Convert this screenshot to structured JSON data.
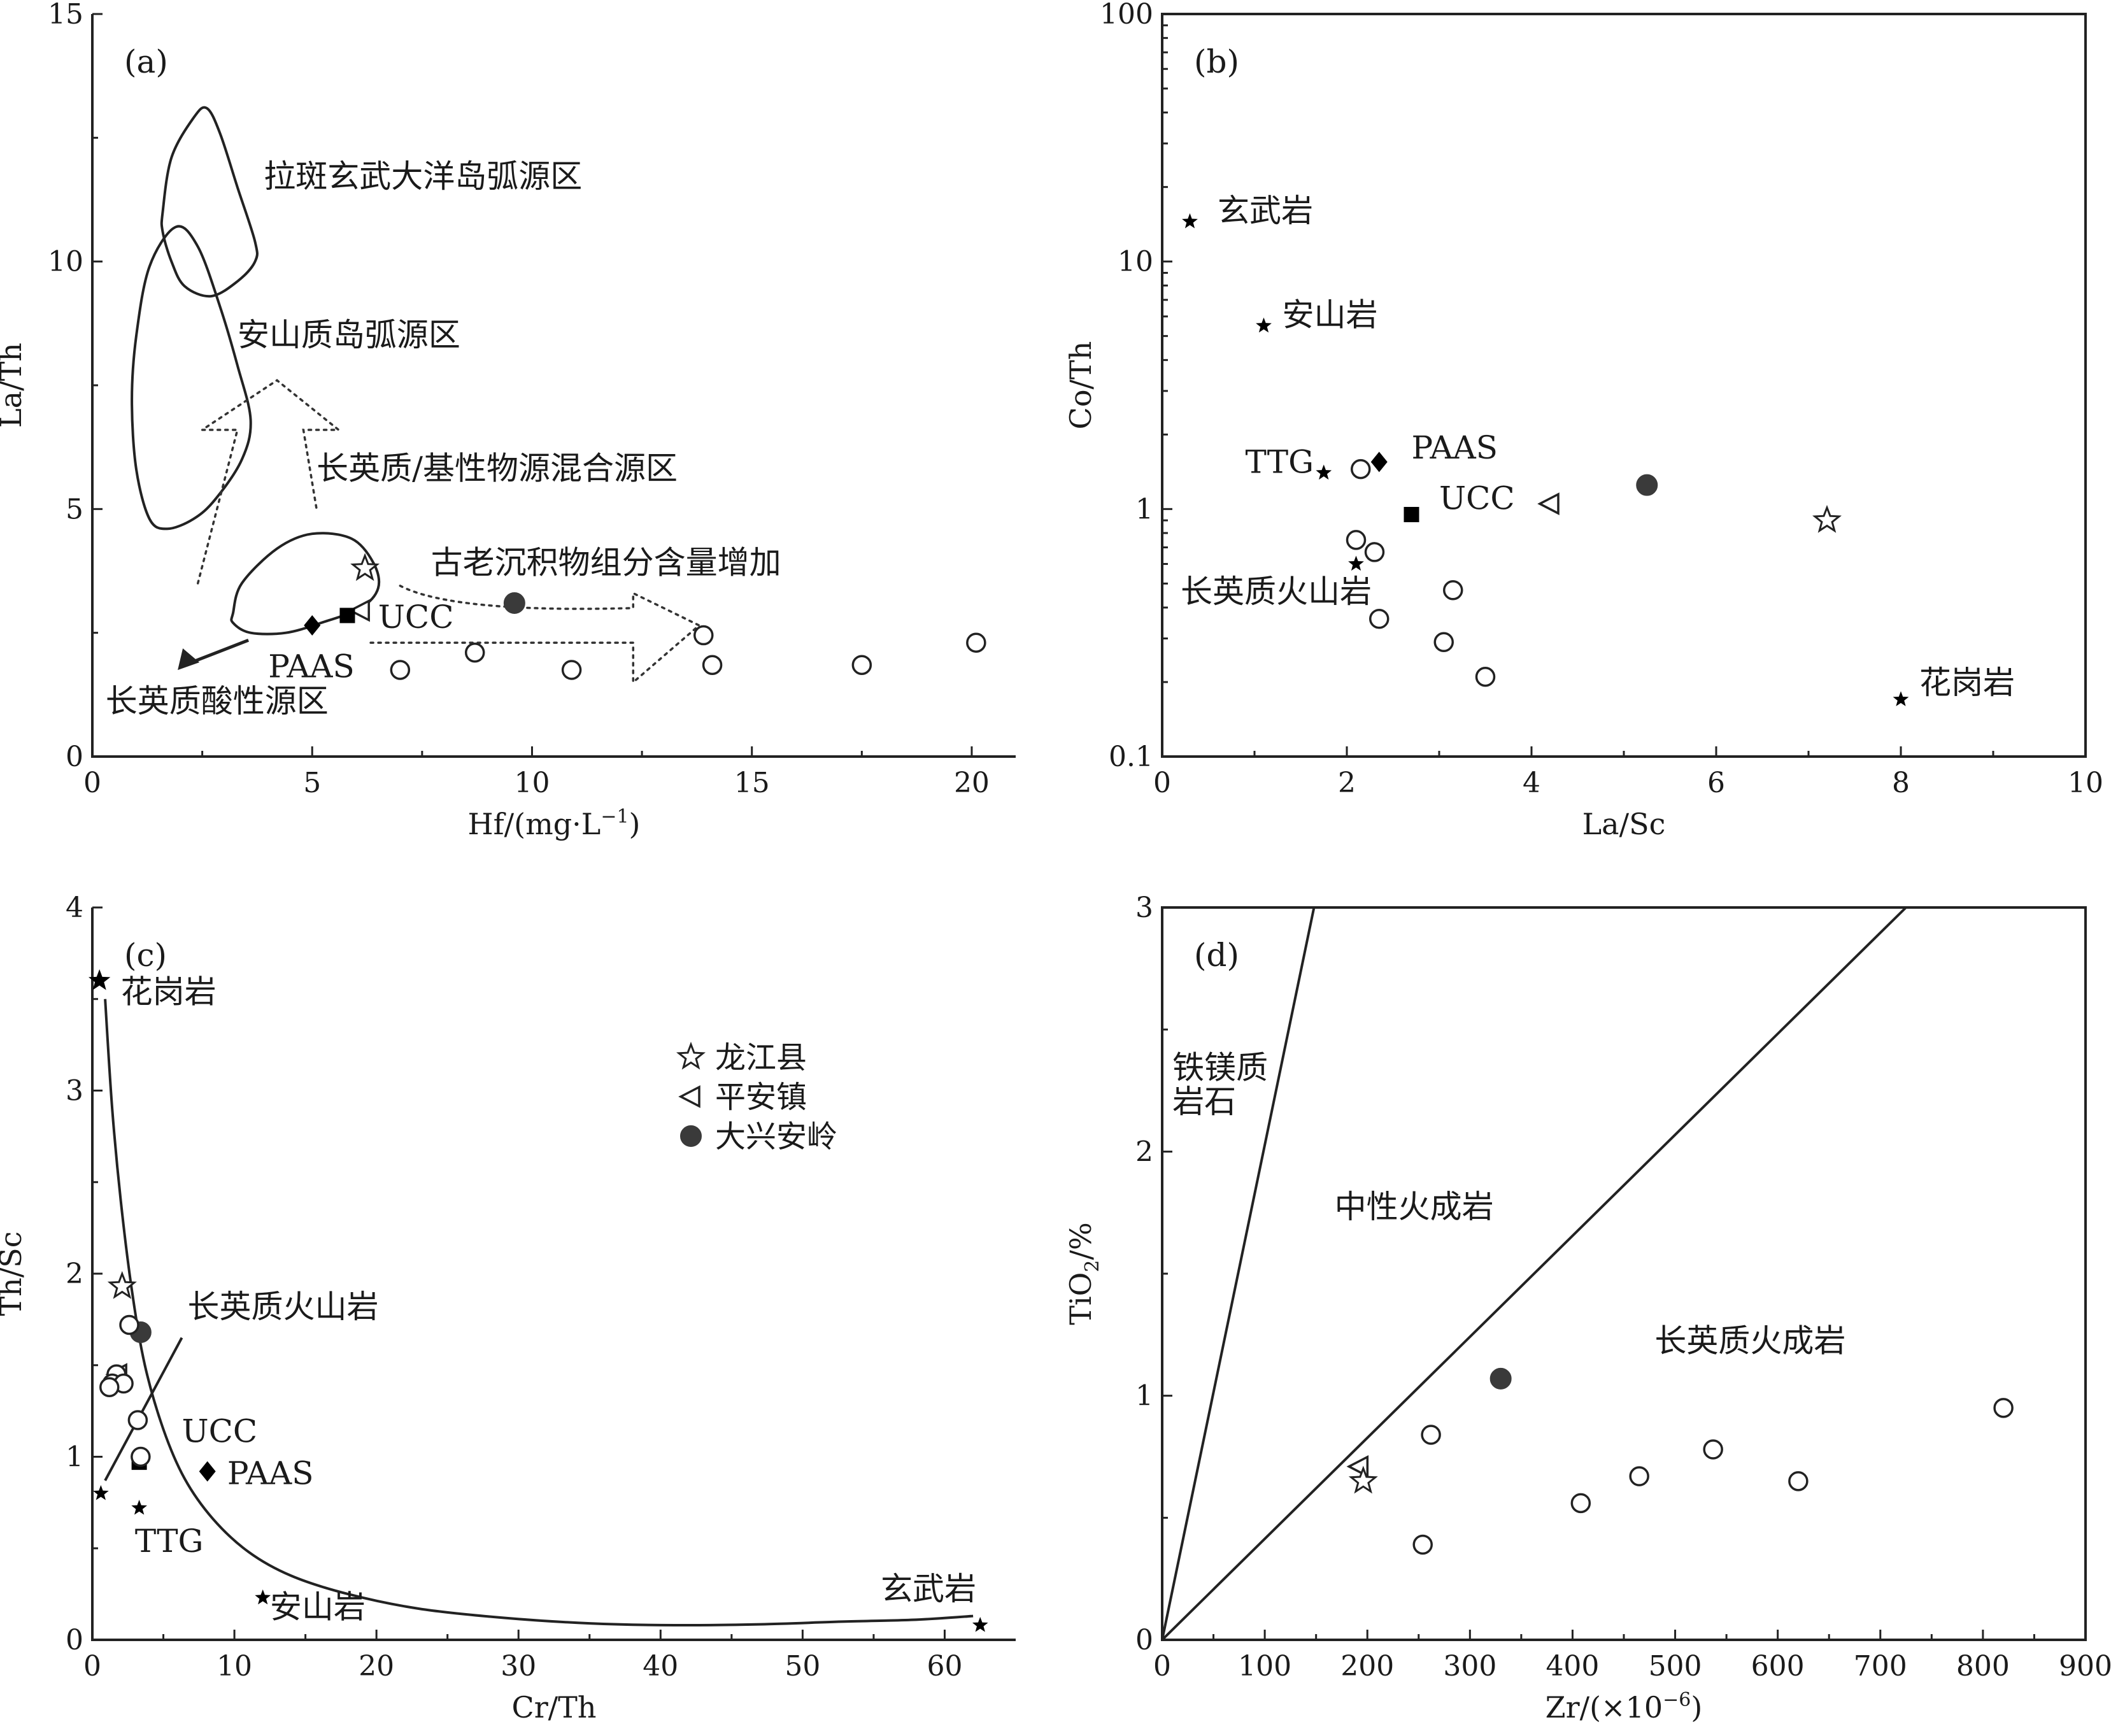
{
  "colors": {
    "ink": "#222222",
    "gray_fill": "#3a3a3a",
    "background": "#ffffff"
  },
  "chart_data": [
    {
      "panel": "a",
      "type": "scatter",
      "tag": "(a)",
      "xlabel": "Hf/(mg·L",
      "xlabel_sup": "−1",
      "xlabel_tail": ")",
      "ylabel": "La/Th",
      "xlim": [
        0,
        21
      ],
      "ylim": [
        0,
        15
      ],
      "xticks": [
        0,
        5,
        10,
        15,
        20
      ],
      "yticks": [
        0,
        5,
        10,
        15
      ],
      "xtick_labels": [
        "0",
        "5",
        "10",
        "15",
        "20"
      ],
      "ytick_labels": [
        "0",
        "5",
        "10",
        "15"
      ],
      "regions": [
        {
          "id": "oceanic-arc",
          "label": "拉斑玄武大洋岛弧源区",
          "label_at": [
            3.9,
            11.5
          ],
          "outline": [
            [
              1.6,
              11.0
            ],
            [
              1.8,
              12.1
            ],
            [
              2.3,
              12.9
            ],
            [
              2.6,
              13.1
            ],
            [
              2.9,
              12.6
            ],
            [
              3.3,
              11.5
            ],
            [
              3.7,
              10.4
            ],
            [
              3.7,
              10.0
            ],
            [
              3.3,
              9.6
            ],
            [
              2.7,
              9.3
            ],
            [
              2.1,
              9.5
            ],
            [
              1.8,
              10.0
            ],
            [
              1.6,
              10.6
            ]
          ]
        },
        {
          "id": "andesitic-arc",
          "label": "安山质岛弧源区",
          "label_at": [
            3.3,
            8.3
          ],
          "outline": [
            [
              1.0,
              8.5
            ],
            [
              1.3,
              9.9
            ],
            [
              1.9,
              10.7
            ],
            [
              2.4,
              10.3
            ],
            [
              2.9,
              9.1
            ],
            [
              3.3,
              7.9
            ],
            [
              3.6,
              6.8
            ],
            [
              3.4,
              6.0
            ],
            [
              2.8,
              5.2
            ],
            [
              2.3,
              4.8
            ],
            [
              1.7,
              4.6
            ],
            [
              1.3,
              4.8
            ],
            [
              1.0,
              5.8
            ],
            [
              0.9,
              7.2
            ]
          ]
        },
        {
          "id": "felsic-basic-mixed",
          "label": "长英质/基性物源混合源区",
          "label_at": [
            5.1,
            5.6
          ]
        },
        {
          "id": "felsic",
          "outline": [
            [
              3.2,
              2.9
            ],
            [
              3.4,
              3.5
            ],
            [
              4.2,
              4.2
            ],
            [
              5.0,
              4.5
            ],
            [
              5.9,
              4.4
            ],
            [
              6.4,
              3.9
            ],
            [
              6.5,
              3.4
            ],
            [
              6.1,
              3.0
            ],
            [
              5.2,
              2.7
            ],
            [
              4.4,
              2.5
            ],
            [
              3.6,
              2.5
            ],
            [
              3.2,
              2.7
            ]
          ]
        }
      ],
      "annotations": [
        {
          "text": "古老沉积物组分含量增加",
          "at": [
            7.7,
            3.7
          ]
        },
        {
          "text": "UCC",
          "at": [
            6.5,
            2.6
          ]
        },
        {
          "text": "PAAS",
          "at": [
            4.0,
            1.6
          ]
        },
        {
          "text": "长英质酸性源区",
          "at": [
            0.3,
            0.9
          ]
        }
      ],
      "points": [
        {
          "name": "龙江县",
          "marker": "open-star",
          "x": 6.2,
          "y": 3.8
        },
        {
          "name": "平安镇",
          "marker": "open-triangle-left",
          "x": 6.1,
          "y": 2.95
        },
        {
          "name": "大兴安岭",
          "marker": "filled-circle",
          "x": 9.6,
          "y": 3.1
        },
        {
          "name": "PAAS",
          "marker": "filled-diamond",
          "x": 5.0,
          "y": 2.65
        },
        {
          "name": "UCC",
          "marker": "filled-square",
          "x": 5.8,
          "y": 2.85
        },
        {
          "name": "sample",
          "marker": "open-circle",
          "x": 7.0,
          "y": 1.75
        },
        {
          "name": "sample",
          "marker": "open-circle",
          "x": 8.7,
          "y": 2.1
        },
        {
          "name": "sample",
          "marker": "open-circle",
          "x": 10.9,
          "y": 1.75
        },
        {
          "name": "sample",
          "marker": "open-circle",
          "x": 13.9,
          "y": 2.45
        },
        {
          "name": "sample",
          "marker": "open-circle",
          "x": 14.1,
          "y": 1.85
        },
        {
          "name": "sample",
          "marker": "open-circle",
          "x": 17.5,
          "y": 1.85
        },
        {
          "name": "sample",
          "marker": "open-circle",
          "x": 20.1,
          "y": 2.3
        }
      ]
    },
    {
      "panel": "b",
      "type": "scatter",
      "tag": "(b)",
      "yscale": "log",
      "xlabel": "La/Sc",
      "ylabel": "Co/Th",
      "xlim": [
        0,
        10
      ],
      "ylim": [
        0.1,
        100
      ],
      "xticks": [
        0,
        2,
        4,
        6,
        8,
        10
      ],
      "yticks": [
        0.1,
        1,
        10,
        100
      ],
      "xtick_labels": [
        "0",
        "2",
        "4",
        "6",
        "8",
        "10"
      ],
      "ytick_labels": [
        "0.1",
        "1",
        "10",
        "100"
      ],
      "annotations": [
        {
          "text": "玄武岩",
          "at": [
            0.6,
            14.5
          ]
        },
        {
          "text": "安山岩",
          "at": [
            1.3,
            5.5
          ]
        },
        {
          "text": "TTG",
          "at": [
            0.9,
            1.4
          ]
        },
        {
          "text": "PAAS",
          "at": [
            2.7,
            1.6
          ]
        },
        {
          "text": "UCC",
          "at": [
            3.0,
            1.0
          ]
        },
        {
          "text": "长英质火山岩",
          "at": [
            0.2,
            0.42
          ]
        },
        {
          "text": "花岗岩",
          "at": [
            8.2,
            0.18
          ]
        }
      ],
      "points": [
        {
          "name": "玄武岩",
          "marker": "small-filled-star",
          "x": 0.3,
          "y": 14.5
        },
        {
          "name": "安山岩",
          "marker": "small-filled-star",
          "x": 1.1,
          "y": 5.5
        },
        {
          "name": "TTG",
          "marker": "small-filled-star",
          "x": 1.75,
          "y": 1.4
        },
        {
          "name": "长英质火山岩",
          "marker": "small-filled-star",
          "x": 2.1,
          "y": 0.6
        },
        {
          "name": "花岗岩",
          "marker": "small-filled-star",
          "x": 8.0,
          "y": 0.17
        },
        {
          "name": "PAAS",
          "marker": "filled-diamond",
          "x": 2.35,
          "y": 1.55
        },
        {
          "name": "UCC",
          "marker": "filled-square",
          "x": 2.7,
          "y": 0.95
        },
        {
          "name": "平安镇",
          "marker": "open-triangle-left",
          "x": 4.2,
          "y": 1.05
        },
        {
          "name": "大兴安岭",
          "marker": "filled-circle",
          "x": 5.25,
          "y": 1.25
        },
        {
          "name": "龙江县",
          "marker": "open-star",
          "x": 7.2,
          "y": 0.9
        },
        {
          "name": "sample",
          "marker": "open-circle",
          "x": 2.15,
          "y": 1.45
        },
        {
          "name": "sample",
          "marker": "open-circle",
          "x": 2.1,
          "y": 0.75
        },
        {
          "name": "sample",
          "marker": "open-circle",
          "x": 2.3,
          "y": 0.67
        },
        {
          "name": "sample",
          "marker": "open-circle",
          "x": 2.35,
          "y": 0.36
        },
        {
          "name": "sample",
          "marker": "open-circle",
          "x": 3.15,
          "y": 0.47
        },
        {
          "name": "sample",
          "marker": "open-circle",
          "x": 3.05,
          "y": 0.29
        },
        {
          "name": "sample",
          "marker": "open-circle",
          "x": 3.5,
          "y": 0.21
        }
      ]
    },
    {
      "panel": "c",
      "type": "scatter",
      "tag": "(c)",
      "xlabel": "Cr/Th",
      "ylabel": "Th/Sc",
      "xlim": [
        0,
        65
      ],
      "ylim": [
        0,
        4
      ],
      "xticks": [
        0,
        10,
        20,
        30,
        40,
        50,
        60
      ],
      "yticks": [
        0,
        1,
        2,
        3,
        4
      ],
      "xtick_labels": [
        "0",
        "10",
        "20",
        "30",
        "40",
        "50",
        "60"
      ],
      "ytick_labels": [
        "0",
        "1",
        "2",
        "3",
        "4"
      ],
      "curve": [
        [
          0.9,
          3.5
        ],
        [
          1.4,
          2.9
        ],
        [
          2.0,
          2.4
        ],
        [
          2.8,
          1.9
        ],
        [
          3.7,
          1.5
        ],
        [
          5.0,
          1.15
        ],
        [
          6.5,
          0.88
        ],
        [
          8.5,
          0.66
        ],
        [
          11,
          0.48
        ],
        [
          14,
          0.35
        ],
        [
          18,
          0.25
        ],
        [
          23,
          0.17
        ],
        [
          29,
          0.12
        ],
        [
          35,
          0.09
        ],
        [
          41,
          0.08
        ],
        [
          47,
          0.085
        ],
        [
          53,
          0.1
        ],
        [
          58,
          0.11
        ],
        [
          62,
          0.13
        ]
      ],
      "line": [
        [
          0.9,
          0.87
        ],
        [
          6.3,
          1.65
        ]
      ],
      "annotations": [
        {
          "text": "花岗岩",
          "at": [
            2.0,
            3.48
          ]
        },
        {
          "text": "长英质火山岩",
          "at": [
            6.7,
            1.76
          ]
        },
        {
          "text": "UCC",
          "at": [
            6.3,
            1.08
          ]
        },
        {
          "text": "PAAS",
          "at": [
            9.5,
            0.85
          ]
        },
        {
          "text": "TTG",
          "at": [
            3.0,
            0.48
          ]
        },
        {
          "text": "安山岩",
          "at": [
            12.5,
            0.12
          ]
        },
        {
          "text": "玄武岩",
          "at": [
            55.5,
            0.22
          ]
        }
      ],
      "legend": {
        "placement": "center-right",
        "items": [
          {
            "marker": "open-star",
            "label": "龙江县"
          },
          {
            "marker": "open-triangle-left",
            "label": "平安镇"
          },
          {
            "marker": "filled-circle",
            "label": "大兴安岭"
          }
        ]
      },
      "points": [
        {
          "name": "花岗岩",
          "marker": "filled-star",
          "x": 0.5,
          "y": 3.6
        },
        {
          "name": "长英质火山岩",
          "marker": "small-filled-star",
          "x": 0.6,
          "y": 0.8
        },
        {
          "name": "TTG",
          "marker": "small-filled-star",
          "x": 3.3,
          "y": 0.72
        },
        {
          "name": "安山岩",
          "marker": "small-filled-star",
          "x": 12.0,
          "y": 0.23
        },
        {
          "name": "玄武岩",
          "marker": "small-filled-star",
          "x": 62.5,
          "y": 0.08
        },
        {
          "name": "UCC",
          "marker": "filled-square",
          "x": 3.3,
          "y": 0.97
        },
        {
          "name": "PAAS",
          "marker": "filled-diamond",
          "x": 8.1,
          "y": 0.92
        },
        {
          "name": "龙江县",
          "marker": "open-star",
          "x": 2.1,
          "y": 1.93
        },
        {
          "name": "平安镇",
          "marker": "open-triangle-left",
          "x": 1.8,
          "y": 1.45
        },
        {
          "name": "大兴安岭",
          "marker": "filled-circle",
          "x": 3.4,
          "y": 1.68
        },
        {
          "name": "sample",
          "marker": "open-circle",
          "x": 2.6,
          "y": 1.72
        },
        {
          "name": "sample",
          "marker": "open-circle",
          "x": 1.7,
          "y": 1.45
        },
        {
          "name": "sample",
          "marker": "open-circle",
          "x": 1.4,
          "y": 1.4
        },
        {
          "name": "sample",
          "marker": "open-circle",
          "x": 2.2,
          "y": 1.4
        },
        {
          "name": "sample",
          "marker": "open-circle",
          "x": 1.2,
          "y": 1.38
        },
        {
          "name": "sample",
          "marker": "open-circle",
          "x": 3.2,
          "y": 1.2
        },
        {
          "name": "sample",
          "marker": "open-circle",
          "x": 3.4,
          "y": 1.0
        }
      ]
    },
    {
      "panel": "d",
      "type": "scatter",
      "tag": "(d)",
      "xlabel": "Zr/(×10",
      "xlabel_sup": "−6",
      "xlabel_tail": ")",
      "ylabel": "TiO",
      "ylabel_sub": "2",
      "ylabel_tail": "/%",
      "xlim": [
        0,
        900
      ],
      "ylim": [
        0,
        3
      ],
      "xticks": [
        0,
        100,
        200,
        300,
        400,
        500,
        600,
        700,
        800,
        900
      ],
      "yticks": [
        0,
        1,
        2,
        3
      ],
      "xtick_labels": [
        "0",
        "100",
        "200",
        "300",
        "400",
        "500",
        "600",
        "700",
        "800",
        "900"
      ],
      "ytick_labels": [
        "0",
        "1",
        "2",
        "3"
      ],
      "lines": [
        [
          [
            0,
            0
          ],
          [
            148,
            3
          ]
        ],
        [
          [
            0,
            0
          ],
          [
            725,
            3
          ]
        ]
      ],
      "annotations": [
        {
          "text": "铁镁质",
          "at": [
            10,
            2.3
          ]
        },
        {
          "text": "岩石",
          "at": [
            10,
            2.16
          ]
        },
        {
          "text": "中性火成岩",
          "at": [
            168,
            1.73
          ]
        },
        {
          "text": "长英质火成岩",
          "at": [
            480,
            1.18
          ]
        }
      ],
      "points": [
        {
          "name": "平安镇",
          "marker": "open-triangle-left",
          "x": 192,
          "y": 0.71
        },
        {
          "name": "龙江县",
          "marker": "open-star",
          "x": 196,
          "y": 0.65
        },
        {
          "name": "大兴安岭",
          "marker": "filled-circle",
          "x": 330,
          "y": 1.07
        },
        {
          "name": "sample",
          "marker": "open-circle",
          "x": 262,
          "y": 0.84
        },
        {
          "name": "sample",
          "marker": "open-circle",
          "x": 254,
          "y": 0.39
        },
        {
          "name": "sample",
          "marker": "open-circle",
          "x": 408,
          "y": 0.56
        },
        {
          "name": "sample",
          "marker": "open-circle",
          "x": 465,
          "y": 0.67
        },
        {
          "name": "sample",
          "marker": "open-circle",
          "x": 537,
          "y": 0.78
        },
        {
          "name": "sample",
          "marker": "open-circle",
          "x": 620,
          "y": 0.65
        },
        {
          "name": "sample",
          "marker": "open-circle",
          "x": 820,
          "y": 0.95
        }
      ]
    }
  ]
}
